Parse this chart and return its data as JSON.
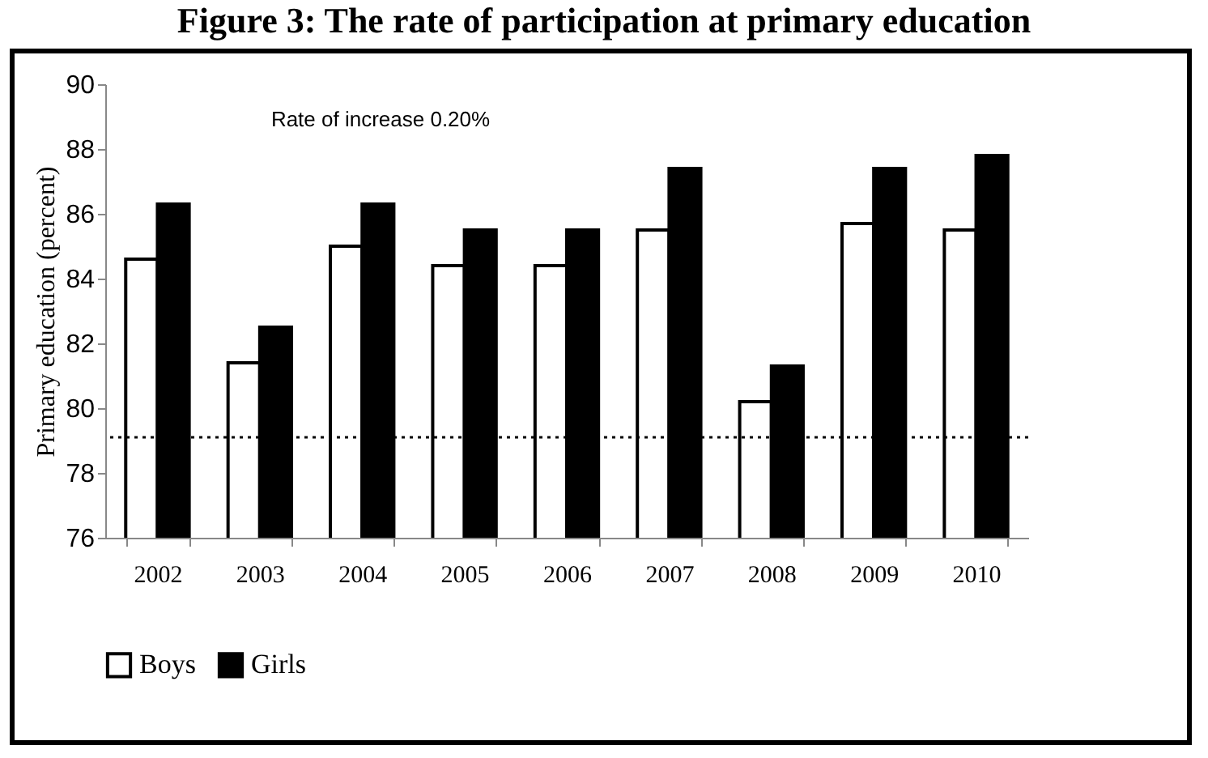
{
  "chart_data": {
    "type": "bar",
    "title": "Figure 3: The rate of participation at primary education",
    "ylabel": "Primary education (percent)",
    "categories": [
      "2002",
      "2003",
      "2004",
      "2005",
      "2006",
      "2007",
      "2008",
      "2009",
      "2010"
    ],
    "series": [
      {
        "name": "Boys",
        "color": "#ffffff",
        "values": [
          84.6,
          81.4,
          85.0,
          84.4,
          84.4,
          85.5,
          80.2,
          85.7,
          85.5
        ]
      },
      {
        "name": "Girls",
        "color": "#000000",
        "values": [
          86.3,
          82.5,
          86.3,
          85.5,
          85.5,
          87.4,
          81.3,
          87.4,
          87.8
        ]
      }
    ],
    "ylim": [
      76,
      90
    ],
    "yticks": [
      76,
      78,
      80,
      82,
      84,
      86,
      88,
      90
    ],
    "ref_lines": [
      {
        "axis": "y",
        "value": 79.1,
        "color": "#000000",
        "line_style": "dotted"
      }
    ],
    "annotations": [
      "Rate of increase 0.20%"
    ],
    "legend": "bottom",
    "grid": false
  }
}
